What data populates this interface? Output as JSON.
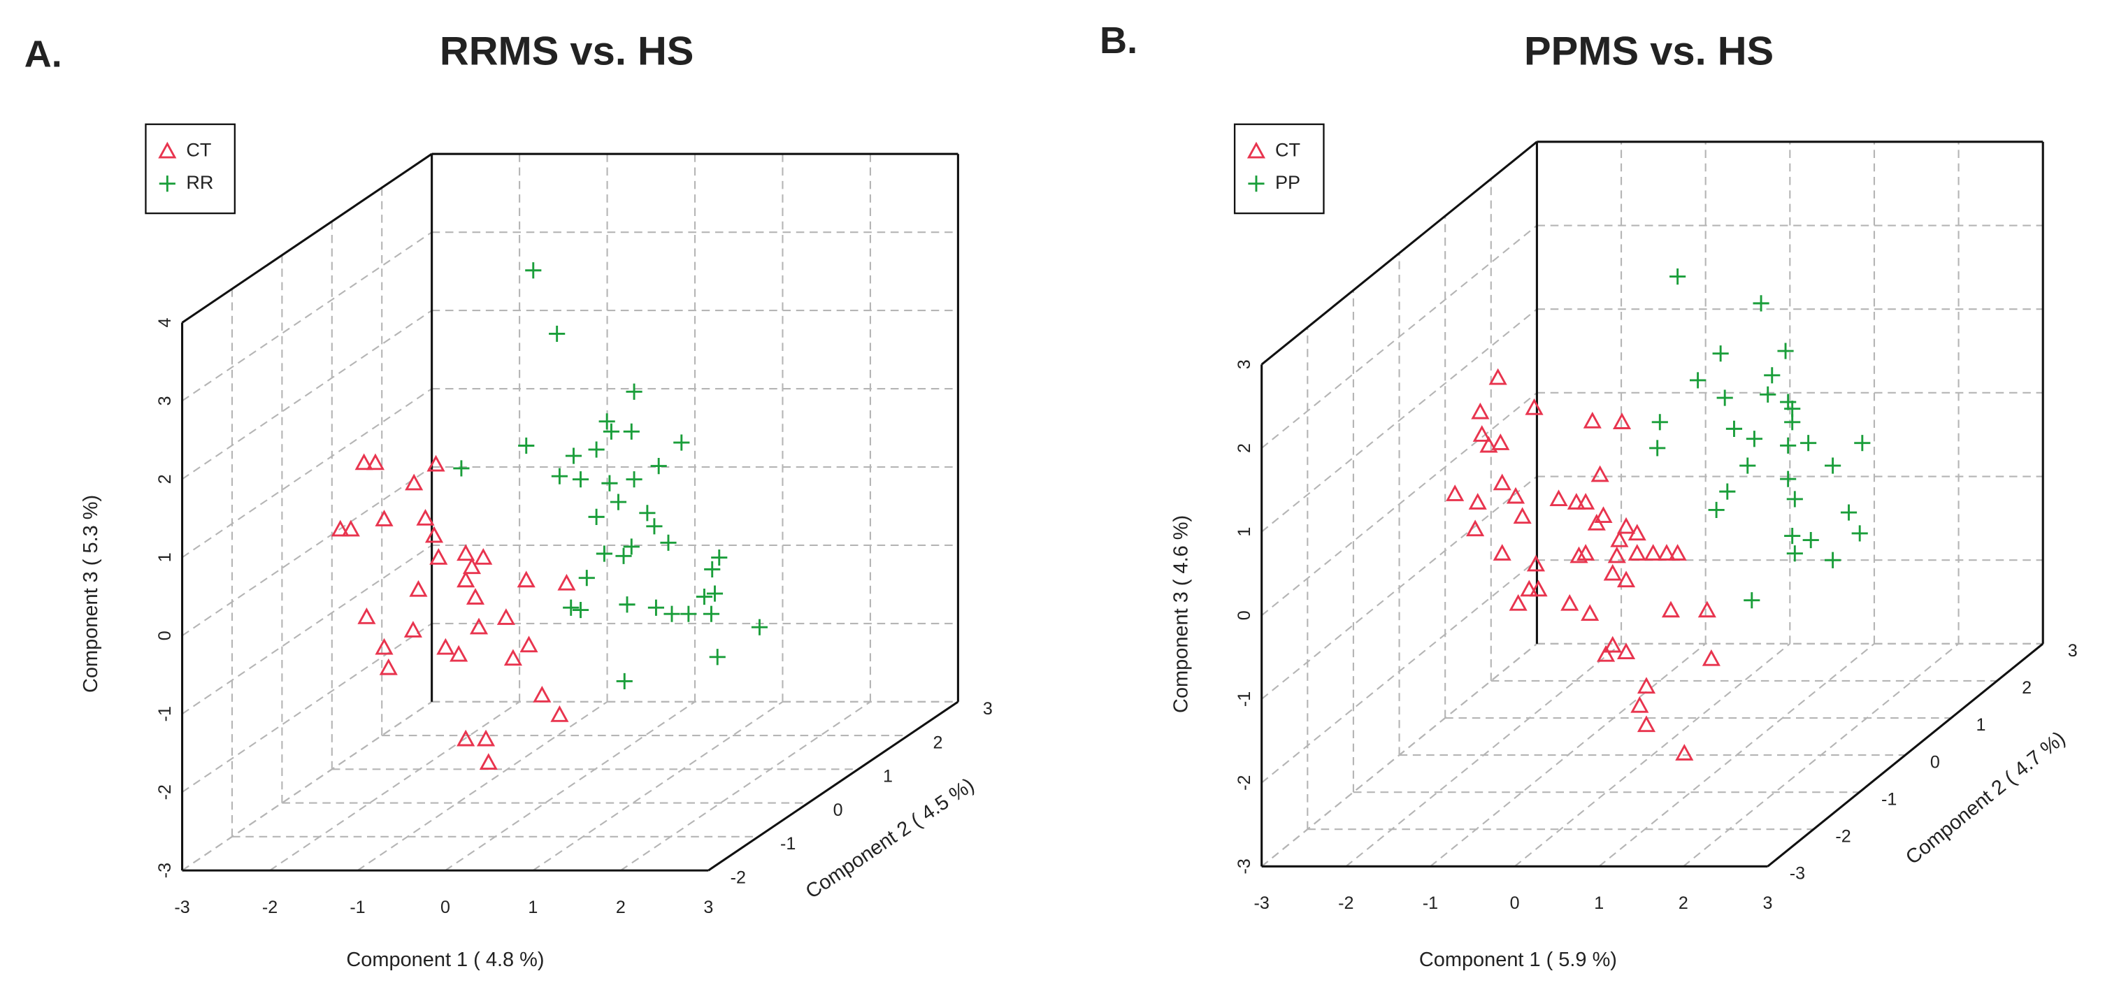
{
  "chart_data": [
    {
      "type": "scatter3d",
      "panel_label": "A.",
      "title": "RRMS vs. HS",
      "xlabel": "Component 1 ( 4.8 %)",
      "ylabel": "Component 2 ( 4.5 %)",
      "zlabel": "Component 3 ( 5.3 %)",
      "xlim": [
        -3,
        3
      ],
      "ylim": [
        -2,
        3
      ],
      "zlim": [
        -3,
        4
      ],
      "xticks": [
        -3,
        -2,
        -1,
        0,
        1,
        2,
        3
      ],
      "yticks": [
        -2,
        -1,
        0,
        1,
        2,
        3
      ],
      "zticks": [
        -3,
        -2,
        -1,
        0,
        1,
        2,
        3,
        4
      ],
      "grid": true,
      "legend": "upper left",
      "series": [
        {
          "name": "CT",
          "color": "#e8344e",
          "marker": "triangle",
          "x": [
            -2.35,
            -2.22,
            -2.62,
            -2.5,
            -2.12,
            -1.78,
            -1.53,
            -1.65,
            -1.55,
            -1.5,
            -1.19,
            -0.99,
            -1.12,
            -1.19,
            -1.08,
            -1.73,
            -2.32,
            -1.79,
            -1.42,
            -1.27,
            -1.04,
            -0.73,
            -0.65,
            -0.47,
            -2.12,
            -2.07,
            -0.32,
            -0.12,
            -1.19,
            -0.96,
            -0.93,
            -0.5,
            -0.04
          ],
          "y": [
            0.5,
            0.5,
            0.5,
            0.5,
            0.5,
            0.5,
            0.5,
            0.5,
            0.5,
            0.5,
            0.5,
            0.5,
            0.5,
            0.5,
            0.5,
            0.5,
            0.5,
            0.5,
            0.5,
            0.5,
            0.5,
            0.5,
            0.5,
            0.5,
            0.5,
            0.5,
            0.5,
            0.5,
            0.5,
            0.5,
            0.5,
            0.5,
            0.5
          ],
          "z": [
            1.13,
            1.13,
            0.28,
            0.28,
            0.41,
            0.87,
            1.11,
            0.42,
            0.2,
            -0.08,
            -0.03,
            -0.08,
            -0.2,
            -0.37,
            -0.59,
            -0.49,
            -0.84,
            -1.01,
            -1.23,
            -1.32,
            -0.97,
            -0.85,
            -1.37,
            -1.2,
            -1.23,
            -1.49,
            -1.84,
            -2.09,
            -2.4,
            -2.4,
            -2.7,
            -0.37,
            -0.41
          ]
        },
        {
          "name": "RR",
          "color": "#1a9e3a",
          "marker": "plus",
          "x": [
            -0.42,
            -0.15,
            -1.24,
            -0.5,
            -0.12,
            0.04,
            0.12,
            0.3,
            0.42,
            0.47,
            0.7,
            0.73,
            1.27,
            1.01,
            0.73,
            0.45,
            0.55,
            0.88,
            0.96,
            0.7,
            1.12,
            0.39,
            0.61,
            0.19,
            0.01,
            0.12,
            0.65,
            0.98,
            1.16,
            1.35,
            1.53,
            1.65,
            1.62,
            1.7,
            1.61,
            2.16,
            1.68,
            0.62,
            0.3
          ],
          "y": [
            0.5,
            0.5,
            0.5,
            0.5,
            0.5,
            0.5,
            0.5,
            0.5,
            0.5,
            0.5,
            0.5,
            0.5,
            0.5,
            0.5,
            0.5,
            0.5,
            0.5,
            0.5,
            0.5,
            0.5,
            0.5,
            0.5,
            0.5,
            0.5,
            0.5,
            0.5,
            0.5,
            0.5,
            0.5,
            0.5,
            0.5,
            0.5,
            0.5,
            0.5,
            0.5,
            0.5,
            0.5,
            0.5,
            0.5
          ],
          "z": [
            3.59,
            2.78,
            1.06,
            1.35,
            0.96,
            1.22,
            0.92,
            1.3,
            1.66,
            1.53,
            1.53,
            2.04,
            1.39,
            1.09,
            0.92,
            0.87,
            0.63,
            0.49,
            0.32,
            0.06,
            0.11,
            -0.03,
            -0.06,
            -0.34,
            -0.72,
            -0.75,
            -0.68,
            -0.72,
            -0.8,
            -0.8,
            -0.58,
            -0.54,
            -0.23,
            -0.08,
            -0.8,
            -0.97,
            -1.35,
            -1.66,
            0.44
          ]
        }
      ]
    },
    {
      "type": "scatter3d",
      "panel_label": "B.",
      "title": "PPMS vs. HS",
      "xlabel": "Component 1 ( 5.9 %)",
      "ylabel": "Component 2 ( 4.7 %)",
      "zlabel": "Component 3 ( 4.6 %)",
      "xlim": [
        -3,
        3
      ],
      "ylim": [
        -3,
        3
      ],
      "zlim": [
        -3,
        3
      ],
      "xticks": [
        -3,
        -2,
        -1,
        0,
        1,
        2,
        3
      ],
      "yticks": [
        -3,
        -2,
        -1,
        0,
        1,
        2,
        3
      ],
      "zticks": [
        -3,
        -2,
        -1,
        0,
        1,
        2,
        3
      ],
      "grid": true,
      "legend": "upper left",
      "series": [
        {
          "name": "CT",
          "color": "#e8344e",
          "marker": "triangle",
          "x": [
            -1.83,
            -2.04,
            -1.4,
            -1.94,
            -1.8,
            -2.02,
            -2.34,
            -2.07,
            -2.1,
            -1.78,
            -1.62,
            -1.54,
            -1.78,
            -1.38,
            -1.46,
            -1.35,
            -1.59,
            -0.98,
            -0.74,
            -1.11,
            -0.9,
            -0.79,
            -0.66,
            -0.58,
            -0.62,
            -0.71,
            -0.36,
            -0.87,
            -0.79,
            -0.39,
            -0.31,
            -0.18,
            -0.42,
            -0.18,
            0.01,
            0.17,
            0.3,
            -0.47,
            -0.31,
            -0.47,
            -0.55,
            -0.31,
            0.22,
            0.65,
            0.7,
            -0.07,
            -0.15,
            -0.07,
            0.38
          ],
          "y": [
            0,
            0,
            0,
            0,
            0,
            0,
            0,
            0,
            0,
            0,
            0,
            0,
            0,
            0,
            0,
            0,
            0,
            0,
            0,
            0,
            0,
            0,
            0,
            0,
            0,
            0,
            0,
            0,
            0,
            0,
            0,
            0,
            0,
            0,
            0,
            0,
            0,
            0,
            0,
            0,
            0,
            0,
            0,
            0,
            0,
            0,
            0,
            0,
            0
          ],
          "z": [
            1.51,
            1.1,
            1.15,
            0.7,
            0.73,
            0.83,
            0.12,
            0.02,
            -0.3,
            0.25,
            0.09,
            -0.15,
            -0.59,
            -0.72,
            -1.02,
            -1.02,
            -1.19,
            -1.19,
            -1.31,
            0.06,
            0.02,
            0.02,
            -0.23,
            -0.14,
            0.35,
            0.99,
            0.98,
            -0.62,
            -0.59,
            -0.43,
            -0.27,
            -0.35,
            -0.62,
            -0.59,
            -0.59,
            -0.59,
            -0.59,
            -0.83,
            -0.91,
            -1.69,
            -1.8,
            -1.77,
            -1.27,
            -1.27,
            -1.85,
            -2.18,
            -2.41,
            -2.64,
            -2.98
          ]
        },
        {
          "name": "PP",
          "color": "#1a9e3a",
          "marker": "plus",
          "x": [
            0.3,
            1.29,
            0.81,
            1.42,
            1.58,
            0.54,
            0.86,
            1.37,
            1.61,
            1.66,
            0.09,
            0.97,
            1.21,
            1.66,
            1.61,
            1.85,
            2.49,
            0.06,
            1.13,
            1.61,
            2.14,
            0.89,
            0.76,
            1.69,
            2.33,
            1.88,
            1.66,
            2.46,
            1.69,
            2.14,
            1.18
          ],
          "y": [
            0,
            0,
            0,
            0,
            0,
            0,
            0,
            0,
            0,
            0,
            0,
            0,
            0,
            0,
            0,
            0,
            0,
            0,
            0,
            0,
            0,
            0,
            0,
            0,
            0,
            0,
            0,
            0,
            0,
            0,
            0
          ],
          "z": [
            2.72,
            2.4,
            1.8,
            1.54,
            1.83,
            1.48,
            1.27,
            1.31,
            1.22,
            1.14,
            0.98,
            0.9,
            0.78,
            0.98,
            0.7,
            0.73,
            0.73,
            0.67,
            0.46,
            0.3,
            0.46,
            0.15,
            -0.07,
            0.06,
            -0.1,
            -0.43,
            -0.38,
            -0.35,
            -0.59,
            -0.67,
            -1.15
          ]
        }
      ]
    }
  ]
}
